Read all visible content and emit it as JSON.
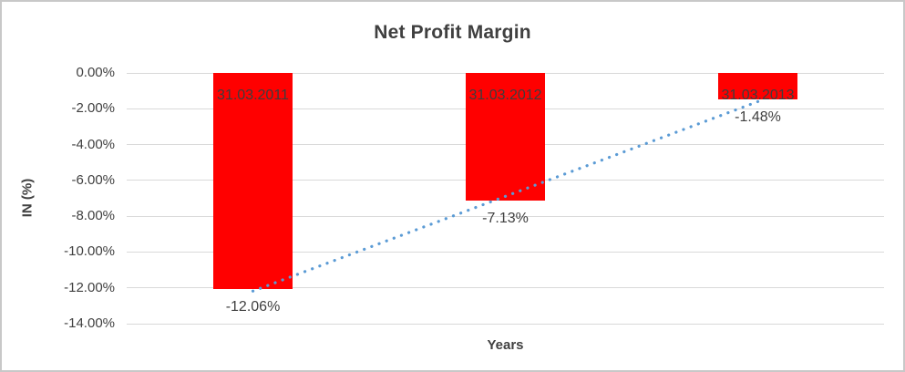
{
  "chart_data": {
    "type": "bar",
    "title": "Net Profit Margin",
    "categories": [
      "31.03.2011",
      "31.03.2012",
      "31.03.2013"
    ],
    "values": [
      -12.06,
      -7.13,
      -1.48
    ],
    "value_labels": [
      "-12.06%",
      "-7.13%",
      "-1.48%"
    ],
    "xlabel": "Years",
    "ylabel": "IN (%)",
    "ylim": [
      0,
      -14
    ],
    "ytick_values": [
      0,
      -2,
      -4,
      -6,
      -8,
      -10,
      -12,
      -14
    ],
    "ytick_labels": [
      "0.00%",
      "-2.00%",
      "-4.00%",
      "-6.00%",
      "-8.00%",
      "-10.00%",
      "-12.00%",
      "-14.00%"
    ],
    "grid": true,
    "legend": "none",
    "bar_color": "#ff0000",
    "text_color": "#404040",
    "gridline_color": "#d9d9d9",
    "trendline": {
      "style": "dotted",
      "color": "#5b9bd5",
      "start_value": -12.18,
      "end_value": -1.6
    }
  }
}
